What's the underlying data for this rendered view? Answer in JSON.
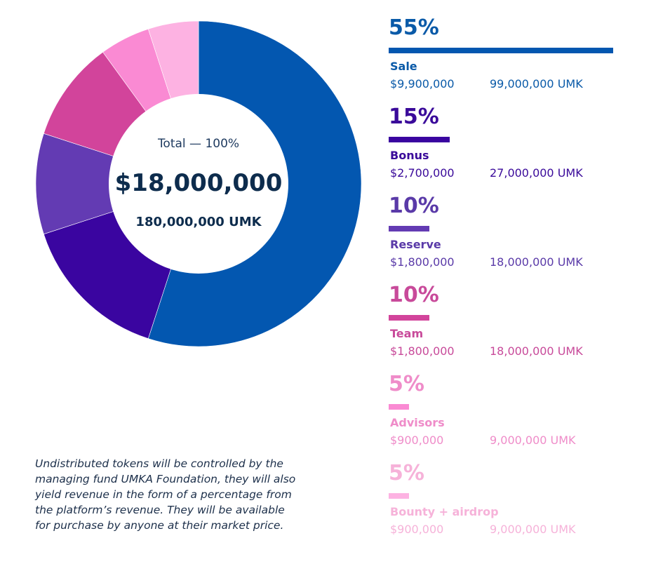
{
  "chart_data": {
    "type": "pie",
    "donut": true,
    "center": {
      "total_label": "Total — 100%",
      "total_amount": "$18,000,000",
      "total_tokens": "180,000,000 UMK"
    },
    "slices": [
      {
        "name": "Sale",
        "value": 55,
        "percent_label": "55%",
        "usd": "$9,900,000",
        "umk": "99,000,000 UMK",
        "color": "#0357b0"
      },
      {
        "name": "Bonus",
        "value": 15,
        "percent_label": "15%",
        "usd": "$2,700,000",
        "umk": "27,000,000 UMK",
        "color": "#3a05a0"
      },
      {
        "name": "Reserve",
        "value": 10,
        "percent_label": "10%",
        "usd": "$1,800,000",
        "umk": "18,000,000 UMK",
        "color": "#633bb3"
      },
      {
        "name": "Team",
        "value": 10,
        "percent_label": "10%",
        "usd": "$1,800,000",
        "umk": "18,000,000 UMK",
        "color": "#d2449b"
      },
      {
        "name": "Advisors",
        "value": 5,
        "percent_label": "5%",
        "usd": "$900,000",
        "umk": "9,000,000 UMK",
        "color": "#fa8ad3"
      },
      {
        "name": "Bounty + airdrop",
        "value": 5,
        "percent_label": "5%",
        "usd": "$900,000",
        "umk": "9,000,000 UMK",
        "color": "#fdb2e2"
      }
    ],
    "legend_placement": "right",
    "ordering": "clockwise from top"
  },
  "legend_text_colors": [
    "#0a5aa8",
    "#3a0a9a",
    "#5a3aa8",
    "#c84a9a",
    "#ef8cc9",
    "#f6b2d9"
  ],
  "footnote": {
    "lines": [
      "Undistributed tokens will be controlled by the",
      "managing fund UMKA Foundation, they will also",
      "yield revenue in the form of a percentage from",
      "the platform’s revenue. They will be available",
      "for purchase by anyone at their market price."
    ]
  }
}
